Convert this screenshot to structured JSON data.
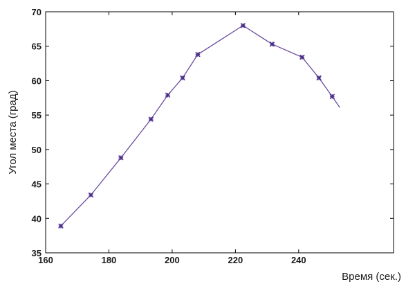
{
  "chart_data": {
    "type": "line",
    "title": "",
    "xlabel": "Время (сек.)",
    "ylabel": "Угол места (град)",
    "xlim": [
      160,
      270
    ],
    "ylim": [
      35,
      70
    ],
    "xticks": [
      "160",
      "180",
      "200",
      "220",
      "240"
    ],
    "yticks": [
      "35",
      "40",
      "45",
      "50",
      "55",
      "60",
      "65",
      "70"
    ],
    "grid": false,
    "colors": {
      "line": "#6a4ca0",
      "marker": "#4a2d8a"
    },
    "series": [
      {
        "points": [
          [
            164.8,
            38.9
          ],
          [
            174.3,
            43.4
          ],
          [
            183.8,
            48.8
          ],
          [
            193.3,
            54.4
          ],
          [
            198.6,
            57.9
          ],
          [
            203.3,
            60.4
          ],
          [
            208.1,
            63.8
          ],
          [
            222.4,
            68.0
          ],
          [
            231.6,
            65.3
          ],
          [
            241.1,
            63.4
          ],
          [
            246.4,
            60.4
          ],
          [
            250.6,
            57.7
          ]
        ],
        "line_end": [
          253.0,
          56.1
        ]
      }
    ]
  }
}
